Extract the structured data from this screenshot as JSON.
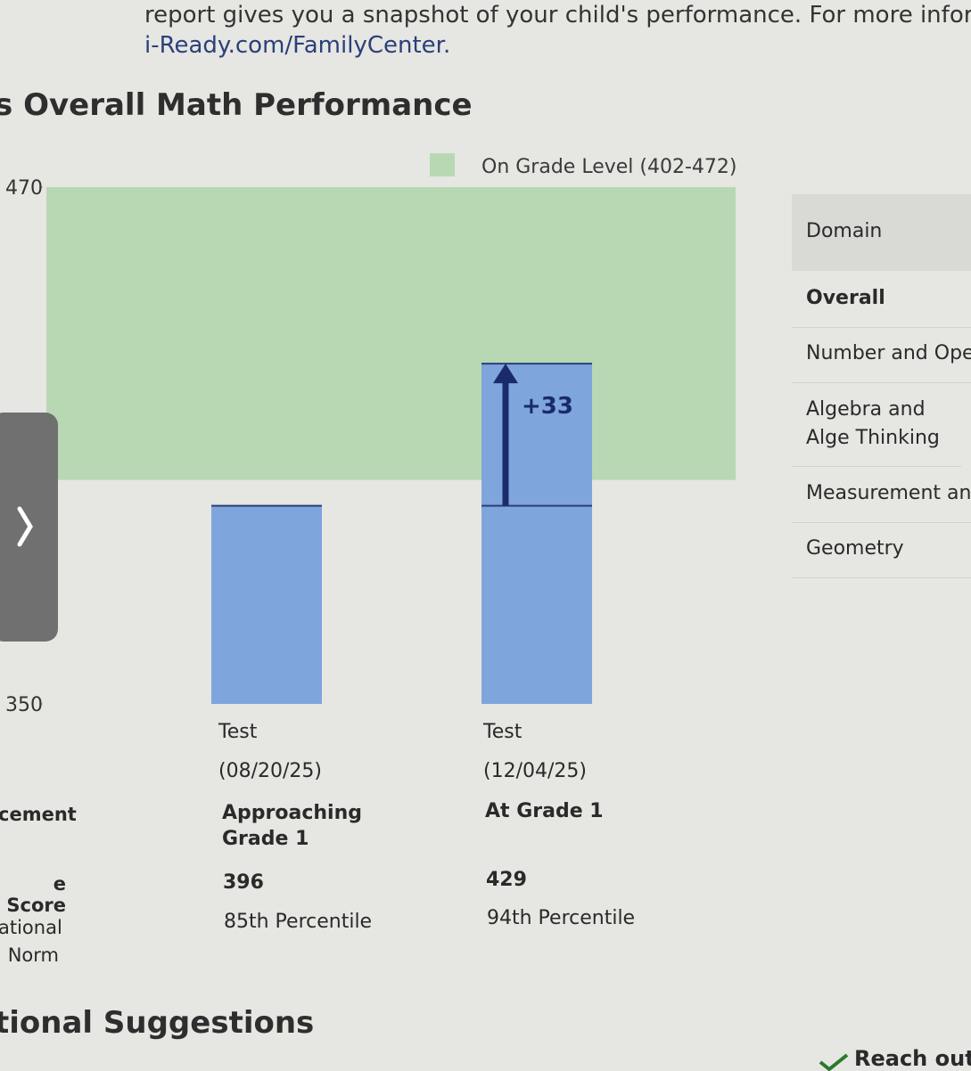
{
  "header": {
    "intro": "report gives you a snapshot of your child's performance. For more inform",
    "link": "i-Ready.com/FamilyCenter."
  },
  "section_title": "s Overall Math Performance",
  "chart_data": {
    "type": "bar",
    "categories": [
      "Test (08/20/25)",
      "Test (12/04/25)"
    ],
    "values": [
      396,
      429
    ],
    "color": "#7ea5dc",
    "ylim": [
      350,
      470
    ],
    "yticks": [
      350,
      470
    ],
    "band": {
      "label": "On Grade Level (402-472)",
      "range": [
        402,
        472
      ],
      "color": "#b8d8b4"
    },
    "change_label": "+33",
    "arrow_color": "#1a2a6a"
  },
  "table": {
    "row_labels": [
      "cement",
      "e Score",
      "ational Norm"
    ],
    "placement": [
      "Approaching Grade 1",
      "At Grade 1"
    ],
    "percentile": [
      "85th Percentile",
      "94th Percentile"
    ]
  },
  "domains": {
    "header": "Domain",
    "rows": [
      "Overall",
      "Number and Ope",
      "Algebra and Alge Thinking",
      "Measurement an",
      "Geometry"
    ]
  },
  "next_section": "tional Suggestions",
  "reach_out": "Reach out"
}
